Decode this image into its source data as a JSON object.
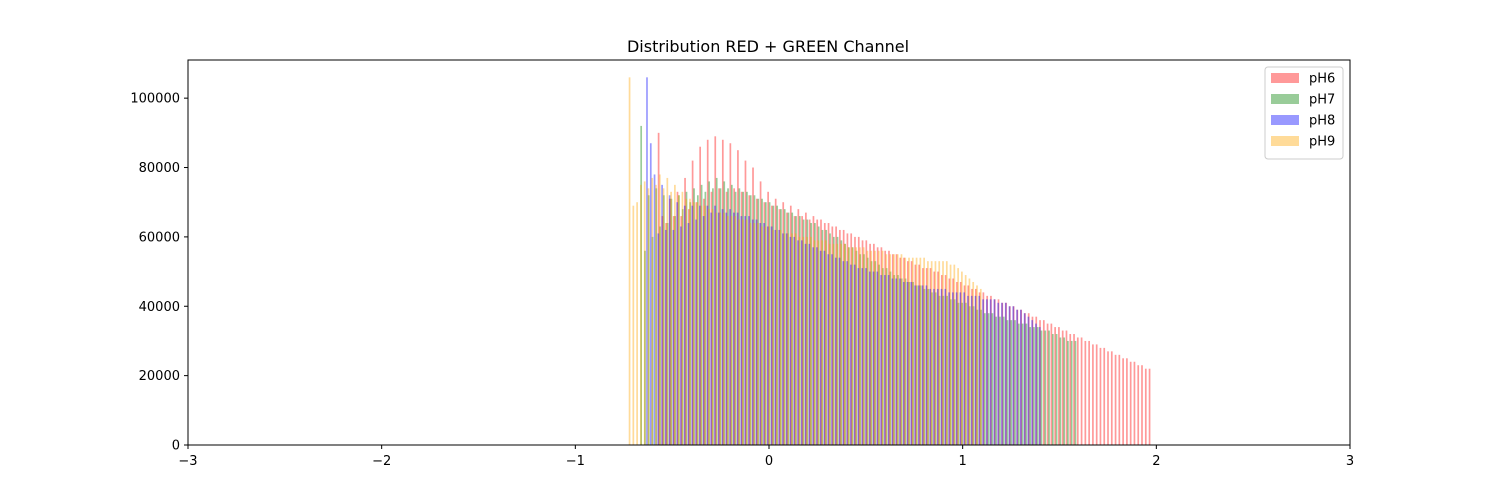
{
  "chart_data": {
    "type": "bar",
    "title": "Distribution RED + GREEN Channel",
    "xlabel": "",
    "ylabel": "",
    "xlim": [
      -3,
      3
    ],
    "ylim": [
      0,
      111000
    ],
    "x_ticks": [
      "−3",
      "−2",
      "−1",
      "0",
      "1",
      "2",
      "3"
    ],
    "x_tick_values": [
      -3,
      -2,
      -1,
      0,
      1,
      2,
      3
    ],
    "y_ticks": [
      "0",
      "20000",
      "40000",
      "60000",
      "80000",
      "100000"
    ],
    "y_tick_values": [
      0,
      20000,
      40000,
      60000,
      80000,
      100000
    ],
    "grid": false,
    "legend_position": "top-right",
    "bin_width": 0.0195,
    "series": [
      {
        "name": "pH6",
        "color": "#ff0000",
        "alpha": 0.4,
        "x_start": -0.57,
        "values": [
          90000,
          66000,
          64000,
          71000,
          66000,
          73000,
          66000,
          77000,
          68000,
          82000,
          70000,
          86000,
          71000,
          88000,
          73000,
          89000,
          74000,
          88000,
          73000,
          87000,
          74000,
          85000,
          73000,
          82000,
          72000,
          80000,
          71000,
          76000,
          70000,
          73000,
          69000,
          71000,
          68000,
          70000,
          67000,
          69000,
          66000,
          68000,
          66000,
          67000,
          65000,
          66000,
          65000,
          65000,
          64000,
          64000,
          63000,
          63000,
          62000,
          62000,
          61000,
          61000,
          60000,
          60000,
          59000,
          59000,
          58000,
          58000,
          57000,
          57000,
          56000,
          56000,
          55000,
          55000,
          54000,
          54000,
          53000,
          53000,
          52000,
          52000,
          51000,
          51000,
          51000,
          50000,
          50000,
          49000,
          49000,
          48000,
          48000,
          47000,
          47000,
          46000,
          46000,
          45000,
          45000,
          44000,
          44000,
          43000,
          43000,
          42000,
          42000,
          41000,
          41000,
          40000,
          40000,
          39000,
          39000,
          38000,
          38000,
          37000,
          37000,
          36000,
          36000,
          35000,
          35000,
          34000,
          34000,
          33000,
          33000,
          32000,
          32000,
          31000,
          31000,
          30000,
          30000,
          29000,
          29000,
          28000,
          28000,
          27000,
          27000,
          26000,
          26000,
          25000,
          25000,
          24000,
          24000,
          23000,
          23000,
          22000,
          22000
        ]
      },
      {
        "name": "pH7",
        "color": "#008000",
        "alpha": 0.4,
        "x_start": -0.66,
        "values": [
          92000,
          56000,
          72000,
          60000,
          74000,
          63000,
          72000,
          64000,
          71000,
          66000,
          72000,
          68000,
          73000,
          70000,
          74000,
          72000,
          75000,
          73000,
          76000,
          74000,
          77000,
          74000,
          76000,
          74000,
          75000,
          73000,
          74000,
          73000,
          73000,
          72000,
          72000,
          71000,
          71000,
          70000,
          70000,
          69000,
          69000,
          68000,
          68000,
          67000,
          67000,
          66000,
          66000,
          65000,
          65000,
          64000,
          64000,
          63000,
          62000,
          62000,
          61000,
          60000,
          60000,
          59000,
          58000,
          57000,
          57000,
          56000,
          55000,
          55000,
          54000,
          53000,
          53000,
          52000,
          51000,
          51000,
          50000,
          49000,
          49000,
          48000,
          48000,
          47000,
          47000,
          46000,
          46000,
          45000,
          45000,
          44000,
          44000,
          43000,
          43000,
          43000,
          42000,
          42000,
          41000,
          41000,
          41000,
          40000,
          40000,
          39000,
          39000,
          38000,
          38000,
          38000,
          37000,
          37000,
          37000,
          36000,
          36000,
          36000,
          35000,
          35000,
          35000,
          34000,
          34000,
          34000,
          33000,
          33000,
          33000,
          32000,
          32000,
          31000,
          31000,
          30000,
          30000,
          30000
        ]
      },
      {
        "name": "pH8",
        "color": "#0000ff",
        "alpha": 0.4,
        "x_start": -0.63,
        "values": [
          106000,
          87000,
          78000,
          61000,
          75000,
          62000,
          72000,
          62000,
          70000,
          63000,
          69000,
          64000,
          69000,
          65000,
          69000,
          66000,
          69000,
          67000,
          69000,
          67000,
          68000,
          67000,
          68000,
          67000,
          67000,
          66000,
          66000,
          66000,
          65000,
          65000,
          64000,
          64000,
          63000,
          63000,
          62000,
          62000,
          61000,
          61000,
          60000,
          60000,
          59000,
          59000,
          58000,
          58000,
          57000,
          57000,
          56000,
          56000,
          55000,
          55000,
          54000,
          54000,
          53000,
          53000,
          52000,
          52000,
          51000,
          51000,
          51000,
          50000,
          50000,
          50000,
          49000,
          49000,
          49000,
          48000,
          48000,
          48000,
          47000,
          47000,
          47000,
          46000,
          46000,
          46000,
          46000,
          45000,
          45000,
          45000,
          45000,
          45000,
          44000,
          44000,
          44000,
          44000,
          44000,
          43000,
          43000,
          43000,
          43000,
          42000,
          42000,
          42000,
          42000,
          41000,
          41000,
          41000,
          40000,
          40000,
          39000,
          39000,
          38000,
          37000,
          36000,
          35000,
          34000
        ]
      },
      {
        "name": "pH9",
        "color": "#ffa500",
        "alpha": 0.4,
        "x_start": -0.72,
        "values": [
          106000,
          69000,
          70000,
          75000,
          76000,
          74000,
          77000,
          75000,
          78000,
          74000,
          77000,
          73000,
          75000,
          72000,
          73000,
          71000,
          71000,
          70000,
          70000,
          69000,
          69000,
          68000,
          68000,
          67000,
          67000,
          67000,
          66000,
          66000,
          66000,
          65000,
          65000,
          65000,
          64000,
          64000,
          64000,
          63000,
          63000,
          63000,
          62000,
          62000,
          62000,
          61000,
          61000,
          61000,
          61000,
          60000,
          60000,
          60000,
          60000,
          59000,
          59000,
          59000,
          59000,
          58000,
          58000,
          58000,
          58000,
          58000,
          57000,
          57000,
          57000,
          57000,
          57000,
          56000,
          56000,
          56000,
          56000,
          56000,
          55000,
          55000,
          55000,
          55000,
          55000,
          54000,
          54000,
          54000,
          54000,
          54000,
          54000,
          53000,
          53000,
          53000,
          53000,
          53000,
          53000,
          52000,
          52000,
          51000,
          50000,
          49000,
          48000,
          47000,
          46000,
          45000
        ]
      }
    ]
  }
}
